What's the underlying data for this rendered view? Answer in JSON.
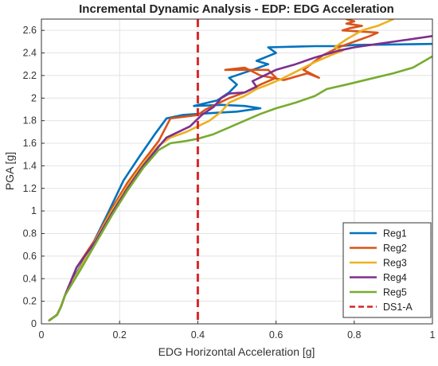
{
  "chart_data": {
    "type": "line",
    "title": "Incremental Dynamic Analysis - EDP: EDG Acceleration",
    "xlabel": "EDG Horizontal Acceleration [g]",
    "ylabel": "PGA [g]",
    "xlim": [
      0,
      1
    ],
    "ylim": [
      0,
      2.7
    ],
    "xticks": [
      0,
      0.2,
      0.4,
      0.6,
      0.8,
      1
    ],
    "xtick_labels": [
      "0",
      "0.2",
      "0.4",
      "0.6",
      "0.8",
      "1"
    ],
    "yticks": [
      0,
      0.2,
      0.4,
      0.6,
      0.8,
      1,
      1.2,
      1.4,
      1.6,
      1.8,
      2,
      2.2,
      2.4,
      2.6
    ],
    "ytick_labels": [
      "0",
      "0.2",
      "0.4",
      "0.6",
      "0.8",
      "1",
      "1.2",
      "1.4",
      "1.6",
      "1.8",
      "2",
      "2.2",
      "2.4",
      "2.6"
    ],
    "grid": true,
    "legend_position": "bottom-right",
    "series": [
      {
        "name": "Reg1",
        "color": "#0072BD",
        "x": [
          0.02,
          0.04,
          0.05,
          0.06,
          0.09,
          0.13,
          0.17,
          0.21,
          0.25,
          0.29,
          0.32,
          0.36,
          0.4,
          0.45,
          0.5,
          0.56,
          0.52,
          0.46,
          0.39,
          0.45,
          0.48,
          0.5,
          0.48,
          0.54,
          0.58,
          0.55,
          0.6,
          0.58,
          0.7,
          0.76,
          0.8,
          1.0
        ],
        "y": [
          0.03,
          0.08,
          0.15,
          0.25,
          0.45,
          0.7,
          0.98,
          1.27,
          1.48,
          1.68,
          1.82,
          1.85,
          1.86,
          1.87,
          1.88,
          1.91,
          1.93,
          1.94,
          1.93,
          1.98,
          2.05,
          2.12,
          2.18,
          2.25,
          2.3,
          2.33,
          2.4,
          2.45,
          2.46,
          2.46,
          2.47,
          2.48
        ]
      },
      {
        "name": "Reg2",
        "color": "#D95319",
        "x": [
          0.02,
          0.04,
          0.05,
          0.06,
          0.09,
          0.14,
          0.18,
          0.22,
          0.26,
          0.3,
          0.33,
          0.4,
          0.42,
          0.45,
          0.48,
          0.52,
          0.56,
          0.6,
          0.58,
          0.47,
          0.52,
          0.56,
          0.62,
          0.68,
          0.71,
          0.67,
          0.72,
          0.76,
          0.8,
          0.84,
          0.86,
          0.77,
          0.79,
          0.82,
          0.78,
          0.8,
          0.78
        ],
        "y": [
          0.03,
          0.08,
          0.15,
          0.25,
          0.5,
          0.76,
          1.02,
          1.25,
          1.44,
          1.62,
          1.82,
          1.85,
          1.9,
          1.95,
          2.0,
          2.05,
          2.12,
          2.18,
          2.25,
          2.25,
          2.27,
          2.2,
          2.16,
          2.22,
          2.18,
          2.25,
          2.38,
          2.45,
          2.5,
          2.55,
          2.58,
          2.6,
          2.62,
          2.64,
          2.66,
          2.68,
          2.7
        ]
      },
      {
        "name": "Reg3",
        "color": "#EDB120",
        "x": [
          0.02,
          0.04,
          0.05,
          0.06,
          0.1,
          0.14,
          0.18,
          0.22,
          0.26,
          0.3,
          0.33,
          0.37,
          0.4,
          0.43,
          0.46,
          0.48,
          0.52,
          0.55,
          0.58,
          0.62,
          0.66,
          0.7,
          0.74,
          0.77,
          0.75,
          0.78,
          0.8,
          0.82,
          0.84,
          0.86,
          0.88,
          0.9
        ],
        "y": [
          0.03,
          0.08,
          0.15,
          0.25,
          0.5,
          0.75,
          1.0,
          1.22,
          1.42,
          1.58,
          1.65,
          1.7,
          1.75,
          1.8,
          1.88,
          1.96,
          2.02,
          2.08,
          2.12,
          2.18,
          2.25,
          2.32,
          2.38,
          2.42,
          2.45,
          2.52,
          2.56,
          2.6,
          2.62,
          2.64,
          2.67,
          2.7
        ]
      },
      {
        "name": "Reg4",
        "color": "#7E2F8E",
        "x": [
          0.02,
          0.04,
          0.05,
          0.06,
          0.09,
          0.14,
          0.18,
          0.22,
          0.26,
          0.3,
          0.32,
          0.38,
          0.41,
          0.44,
          0.46,
          0.48,
          0.52,
          0.55,
          0.54,
          0.57,
          0.6,
          0.65,
          0.7,
          0.74,
          0.76,
          0.8,
          0.86,
          0.92,
          1.0
        ],
        "y": [
          0.03,
          0.08,
          0.15,
          0.25,
          0.5,
          0.74,
          0.98,
          1.2,
          1.4,
          1.57,
          1.65,
          1.75,
          1.85,
          1.92,
          2.0,
          2.04,
          2.05,
          2.1,
          2.15,
          2.2,
          2.25,
          2.3,
          2.36,
          2.4,
          2.42,
          2.45,
          2.48,
          2.51,
          2.55
        ]
      },
      {
        "name": "Reg5",
        "color": "#77AC30",
        "x": [
          0.02,
          0.04,
          0.05,
          0.06,
          0.1,
          0.14,
          0.18,
          0.22,
          0.26,
          0.3,
          0.33,
          0.37,
          0.4,
          0.44,
          0.48,
          0.52,
          0.56,
          0.6,
          0.65,
          0.7,
          0.73,
          0.78,
          0.84,
          0.9,
          0.95,
          0.98,
          1.0
        ],
        "y": [
          0.03,
          0.08,
          0.15,
          0.25,
          0.48,
          0.72,
          0.96,
          1.18,
          1.38,
          1.54,
          1.6,
          1.62,
          1.64,
          1.68,
          1.74,
          1.8,
          1.86,
          1.91,
          1.96,
          2.02,
          2.08,
          2.12,
          2.17,
          2.22,
          2.27,
          2.33,
          2.37
        ]
      }
    ],
    "threshold": {
      "name": "DS1-A",
      "color": "#D62728",
      "style": "dashed",
      "x": 0.4
    }
  }
}
